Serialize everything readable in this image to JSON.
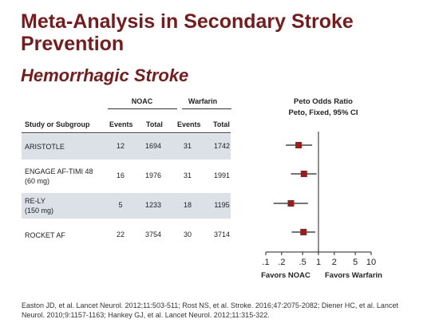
{
  "title": "Meta-Analysis in Secondary Stroke Prevention",
  "subtitle": "Hemorrhagic Stroke",
  "table": {
    "group_headers": [
      "NOAC",
      "Warfarin"
    ],
    "columns": [
      "Study or Subgroup",
      "Events",
      "Total",
      "Events",
      "Total"
    ],
    "rows": [
      {
        "study": [
          "ARISTOTLE"
        ],
        "noac_events": "12",
        "noac_total": "1694",
        "warfarin_events": "31",
        "warfarin_total": "1742"
      },
      {
        "study": [
          "ENGAGE AF-TIMI 48",
          "(60 mg)"
        ],
        "noac_events": "16",
        "noac_total": "1976",
        "warfarin_events": "31",
        "warfarin_total": "1991"
      },
      {
        "study": [
          "RE-LY",
          "(150 mg)"
        ],
        "noac_events": "5",
        "noac_total": "1233",
        "warfarin_events": "18",
        "warfarin_total": "1195"
      },
      {
        "study": [
          "ROCKET AF"
        ],
        "noac_events": "22",
        "noac_total": "3754",
        "warfarin_events": "30",
        "warfarin_total": "3714"
      }
    ]
  },
  "forest": {
    "title_line1": "Peto Odds Ratio",
    "title_line2": "Peto, Fixed, 95% CI",
    "label_left": "Favors NOAC",
    "label_right": "Favors Warfarin",
    "marker_color": "#9b1c1c"
  },
  "chart_data": {
    "type": "forest",
    "scale": "log",
    "xlim": [
      0.1,
      10
    ],
    "reference_line": 1,
    "ticks": [
      0.1,
      0.2,
      0.5,
      1,
      2,
      5,
      10
    ],
    "tick_labels": [
      ".1",
      ".2",
      ".5",
      "1",
      "2",
      "5",
      "10"
    ],
    "studies": [
      {
        "name": "ARISTOTLE",
        "or": 0.42,
        "ci": [
          0.24,
          0.76
        ]
      },
      {
        "name": "ENGAGE AF-TIMI 48 (60 mg)",
        "or": 0.53,
        "ci": [
          0.3,
          0.92
        ]
      },
      {
        "name": "RE-LY (150 mg)",
        "or": 0.3,
        "ci": [
          0.14,
          0.63
        ]
      },
      {
        "name": "ROCKET AF",
        "or": 0.52,
        "ci": [
          0.31,
          0.87
        ]
      }
    ]
  },
  "footer": "Easton JD, et al. Lancet Neurol. 2012;11:503-511; Rost NS, et al. Stroke. 2016;47:2075-2082; Diener HC, et al. Lancet Neurol. 2010;9:1157-1163; Hankey GJ, et al. Lancet Neurol. 2012;11:315-322."
}
